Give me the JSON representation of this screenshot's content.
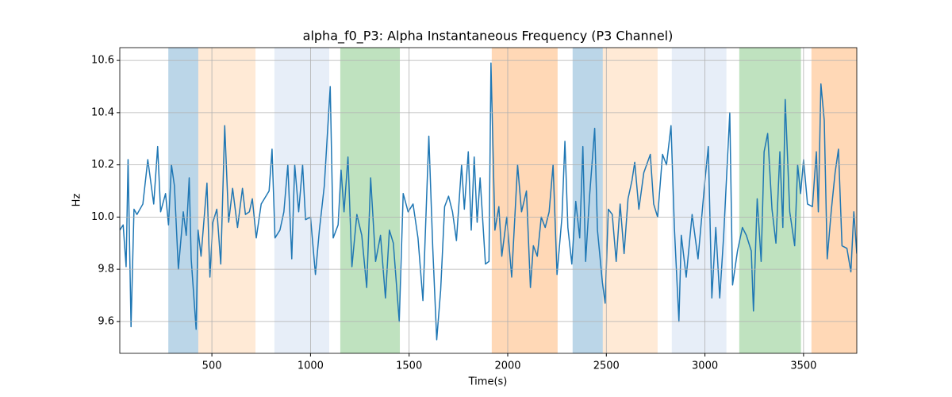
{
  "chart_data": {
    "type": "line",
    "title": "alpha_f0_P3: Alpha Instantaneous Frequency (P3 Channel)",
    "xlabel": "Time(s)",
    "ylabel": "Hz",
    "color": "#1f77b4",
    "xlim": [
      33,
      3770
    ],
    "ylim": [
      9.478,
      10.649
    ],
    "xticks": [
      500,
      1000,
      1500,
      2000,
      2500,
      3000,
      3500
    ],
    "yticks": [
      9.6,
      9.8,
      {
        "value": 10.0,
        "label": "10.0"
      },
      10.2,
      10.4,
      10.6
    ],
    "grid": true,
    "spans": [
      {
        "start": 279,
        "end": 431,
        "color": "#1f77b4",
        "opacity": 0.3
      },
      {
        "start": 431,
        "end": 721,
        "color": "#ffbb78",
        "opacity": 0.3
      },
      {
        "start": 817,
        "end": 1095,
        "color": "#aec7e8",
        "opacity": 0.3
      },
      {
        "start": 1151,
        "end": 1453,
        "color": "#2ca02c",
        "opacity": 0.3
      },
      {
        "start": 1919,
        "end": 2253,
        "color": "#ff7f0e",
        "opacity": 0.3
      },
      {
        "start": 2329,
        "end": 2482,
        "color": "#1f77b4",
        "opacity": 0.3
      },
      {
        "start": 2482,
        "end": 2760,
        "color": "#ffbb78",
        "opacity": 0.3
      },
      {
        "start": 2832,
        "end": 3109,
        "color": "#aec7e8",
        "opacity": 0.3
      },
      {
        "start": 3174,
        "end": 3487,
        "color": "#2ca02c",
        "opacity": 0.3
      },
      {
        "start": 3540,
        "end": 3770,
        "color": "#ff7f0e",
        "opacity": 0.3
      }
    ],
    "x": [
      33,
      50,
      65,
      75,
      90,
      105,
      120,
      150,
      175,
      205,
      225,
      240,
      265,
      280,
      295,
      310,
      330,
      355,
      370,
      385,
      395,
      420,
      430,
      445,
      475,
      490,
      505,
      525,
      545,
      565,
      585,
      605,
      630,
      655,
      670,
      690,
      705,
      725,
      750,
      790,
      805,
      820,
      845,
      865,
      885,
      905,
      920,
      940,
      960,
      975,
      1000,
      1025,
      1045,
      1070,
      1100,
      1115,
      1140,
      1155,
      1170,
      1190,
      1210,
      1235,
      1260,
      1285,
      1305,
      1330,
      1355,
      1380,
      1400,
      1420,
      1450,
      1470,
      1495,
      1520,
      1545,
      1570,
      1600,
      1620,
      1640,
      1660,
      1680,
      1700,
      1720,
      1740,
      1766,
      1780,
      1800,
      1815,
      1830,
      1845,
      1860,
      1887,
      1905,
      1915,
      1935,
      1955,
      1970,
      1995,
      2020,
      2050,
      2070,
      2095,
      2115,
      2130,
      2150,
      2170,
      2190,
      2210,
      2230,
      2250,
      2275,
      2290,
      2305,
      2325,
      2345,
      2365,
      2381,
      2395,
      2415,
      2441,
      2455,
      2480,
      2494,
      2510,
      2530,
      2550,
      2570,
      2590,
      2610,
      2630,
      2644,
      2665,
      2690,
      2723,
      2740,
      2760,
      2785,
      2805,
      2828,
      2845,
      2868,
      2880,
      2905,
      2935,
      2965,
      3000,
      3017,
      3035,
      3055,
      3075,
      3095,
      3126,
      3140,
      3165,
      3190,
      3210,
      3235,
      3246,
      3265,
      3285,
      3300,
      3318,
      3340,
      3360,
      3380,
      3395,
      3407,
      3430,
      3455,
      3470,
      3485,
      3500,
      3520,
      3545,
      3565,
      3575,
      3588,
      3605,
      3620,
      3640,
      3660,
      3677,
      3695,
      3720,
      3740,
      3755,
      3770
    ],
    "values": [
      9.95,
      9.97,
      9.81,
      10.22,
      9.58,
      10.03,
      10.01,
      10.05,
      10.22,
      10.05,
      10.27,
      10.02,
      10.09,
      9.97,
      10.2,
      10.12,
      9.8,
      10.02,
      9.93,
      10.15,
      9.84,
      9.57,
      9.95,
      9.85,
      10.13,
      9.77,
      9.98,
      10.03,
      9.82,
      10.35,
      9.98,
      10.11,
      9.96,
      10.11,
      10.01,
      10.02,
      10.07,
      9.92,
      10.05,
      10.1,
      10.26,
      9.92,
      9.95,
      10.02,
      10.2,
      9.84,
      10.2,
      10.02,
      10.2,
      9.99,
      10.0,
      9.78,
      9.95,
      10.12,
      10.5,
      9.92,
      9.97,
      10.18,
      10.02,
      10.23,
      9.81,
      10.01,
      9.93,
      9.73,
      10.15,
      9.83,
      9.93,
      9.69,
      9.95,
      9.9,
      9.6,
      10.09,
      10.02,
      10.05,
      9.92,
      9.68,
      10.31,
      9.88,
      9.53,
      9.72,
      10.04,
      10.08,
      10.02,
      9.91,
      10.2,
      10.03,
      10.25,
      9.95,
      10.23,
      9.98,
      10.15,
      9.82,
      9.83,
      10.59,
      9.95,
      10.04,
      9.85,
      10.0,
      9.77,
      10.2,
      10.02,
      10.1,
      9.73,
      9.89,
      9.85,
      10.0,
      9.96,
      10.02,
      10.2,
      9.78,
      10.0,
      10.29,
      9.96,
      9.82,
      10.06,
      9.92,
      10.27,
      9.83,
      10.08,
      10.34,
      9.95,
      9.75,
      9.67,
      10.03,
      10.01,
      9.83,
      10.05,
      9.86,
      10.07,
      10.14,
      10.21,
      10.03,
      10.17,
      10.24,
      10.05,
      10.0,
      10.24,
      10.2,
      10.35,
      9.96,
      9.6,
      9.93,
      9.77,
      10.01,
      9.84,
      10.14,
      10.27,
      9.69,
      9.96,
      9.69,
      9.93,
      10.4,
      9.74,
      9.87,
      9.96,
      9.93,
      9.87,
      9.64,
      10.07,
      9.83,
      10.25,
      10.32,
      10.03,
      9.9,
      10.25,
      9.96,
      10.45,
      10.02,
      9.89,
      10.2,
      10.09,
      10.22,
      10.05,
      10.04,
      10.25,
      10.02,
      10.51,
      10.37,
      9.84,
      10.02,
      10.17,
      10.26,
      9.89,
      9.88,
      9.79,
      10.02,
      9.86
    ]
  }
}
